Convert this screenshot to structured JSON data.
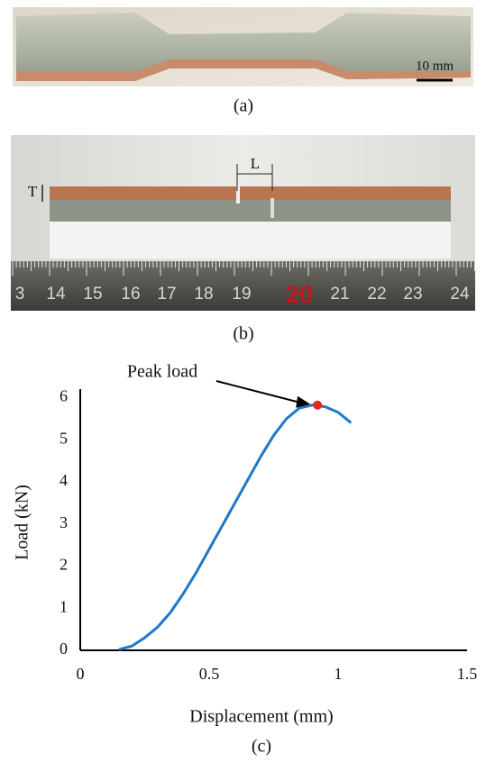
{
  "panels": {
    "a": {
      "label": "(a)",
      "scale_bar": "10 mm"
    },
    "b": {
      "label": "(b)",
      "thickness_mark": "T",
      "length_mark": "L",
      "ruler": [
        "3",
        "14",
        "15",
        "16",
        "17",
        "18",
        "19",
        "20",
        "21",
        "22",
        "23",
        "24"
      ]
    },
    "c": {
      "label": "(c)"
    }
  },
  "chart_data": {
    "type": "line",
    "x_label": "Displacement (mm)",
    "y_label": "Load (kN)",
    "annotation": "Peak load",
    "x": [
      0.15,
      0.2,
      0.25,
      0.3,
      0.35,
      0.4,
      0.45,
      0.5,
      0.55,
      0.6,
      0.65,
      0.7,
      0.75,
      0.8,
      0.85,
      0.9,
      0.95,
      1.0,
      1.05
    ],
    "series": [
      {
        "color": "#1f78c8",
        "values": [
          0.02,
          0.1,
          0.3,
          0.55,
          0.9,
          1.35,
          1.85,
          2.4,
          2.95,
          3.5,
          4.05,
          4.6,
          5.1,
          5.5,
          5.75,
          5.82,
          5.78,
          5.65,
          5.4
        ]
      }
    ],
    "peak": {
      "x": 0.92,
      "y": 5.82,
      "color": "#e8251f"
    },
    "xlim": [
      0,
      1.5
    ],
    "ylim": [
      0,
      6.2
    ],
    "xticks": [
      0,
      0.5,
      1,
      1.5
    ],
    "yticks": [
      0,
      1,
      2,
      3,
      4,
      5,
      6
    ],
    "grid": false
  }
}
